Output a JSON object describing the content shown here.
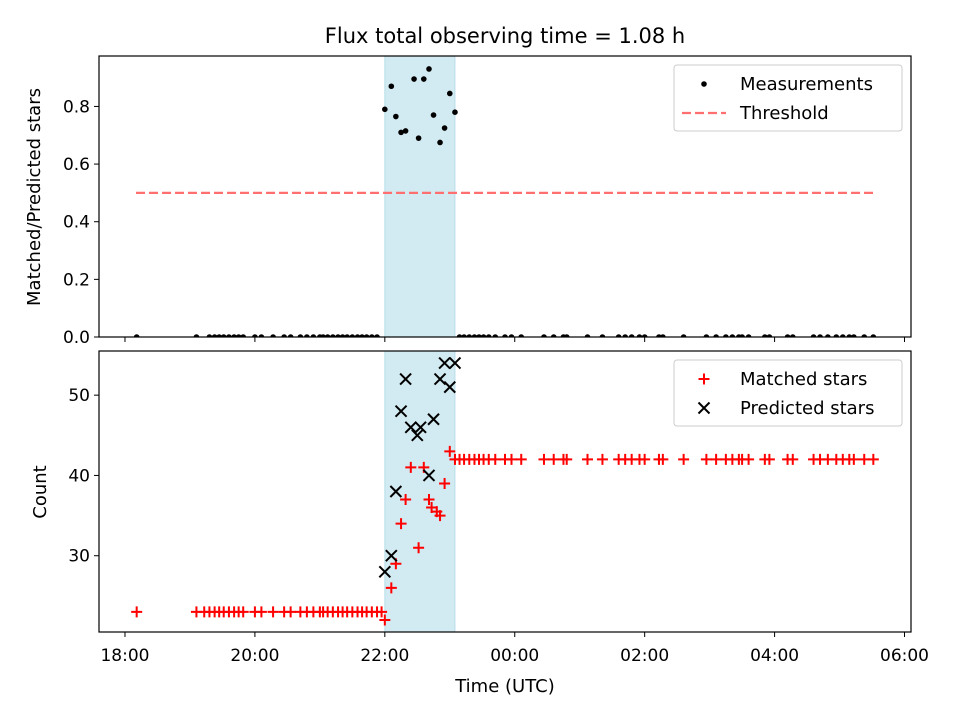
{
  "chart_data": {
    "title": "Flux total observing time = 1.08 h",
    "xlabel": "Time (UTC)",
    "x_unit": "hours after 18:00 UTC",
    "xlim": [
      -0.4,
      12.1
    ],
    "xticks": [
      {
        "x": 0,
        "label": "18:00"
      },
      {
        "x": 2,
        "label": "20:00"
      },
      {
        "x": 4,
        "label": "22:00"
      },
      {
        "x": 6,
        "label": "00:00"
      },
      {
        "x": 8,
        "label": "02:00"
      },
      {
        "x": 10,
        "label": "04:00"
      },
      {
        "x": 12,
        "label": "06:00"
      }
    ],
    "shaded_span": {
      "x0": 4.0,
      "x1": 5.08,
      "color": "#add8e6"
    },
    "panels": [
      {
        "type": "scatter",
        "ylabel": "Matched/Predicted stars",
        "ylim": [
          0,
          0.975
        ],
        "yticks": [
          0.0,
          0.2,
          0.4,
          0.6,
          0.8
        ],
        "ytick_labels": [
          "0.0",
          "0.2",
          "0.4",
          "0.6",
          "0.8"
        ],
        "legend_position": "upper-right",
        "series": [
          {
            "name": "Measurements",
            "marker": "dot",
            "color": "#000000",
            "points": [
              [
                0.18,
                0
              ],
              [
                1.1,
                0
              ],
              [
                1.3,
                0
              ],
              [
                1.38,
                0
              ],
              [
                1.45,
                0
              ],
              [
                1.52,
                0
              ],
              [
                1.6,
                0
              ],
              [
                1.68,
                0
              ],
              [
                1.75,
                0
              ],
              [
                1.82,
                0
              ],
              [
                2.0,
                0
              ],
              [
                2.1,
                0
              ],
              [
                2.28,
                0
              ],
              [
                2.45,
                0
              ],
              [
                2.55,
                0
              ],
              [
                2.7,
                0
              ],
              [
                2.8,
                0
              ],
              [
                2.9,
                0
              ],
              [
                3.0,
                0
              ],
              [
                3.05,
                0
              ],
              [
                3.12,
                0
              ],
              [
                3.2,
                0
              ],
              [
                3.28,
                0
              ],
              [
                3.35,
                0
              ],
              [
                3.42,
                0
              ],
              [
                3.5,
                0
              ],
              [
                3.58,
                0
              ],
              [
                3.65,
                0
              ],
              [
                3.72,
                0
              ],
              [
                3.8,
                0
              ],
              [
                3.88,
                0
              ],
              [
                4.0,
                0.79
              ],
              [
                4.1,
                0.87
              ],
              [
                4.17,
                0.765
              ],
              [
                4.25,
                0.71
              ],
              [
                4.32,
                0.715
              ],
              [
                4.45,
                0.895
              ],
              [
                4.52,
                0.69
              ],
              [
                4.6,
                0.895
              ],
              [
                4.68,
                0.93
              ],
              [
                4.75,
                0.77
              ],
              [
                4.85,
                0.675
              ],
              [
                4.92,
                0.725
              ],
              [
                5.0,
                0.845
              ],
              [
                5.08,
                0.78
              ],
              [
                5.15,
                0
              ],
              [
                5.22,
                0
              ],
              [
                5.3,
                0
              ],
              [
                5.38,
                0
              ],
              [
                5.45,
                0
              ],
              [
                5.52,
                0
              ],
              [
                5.6,
                0
              ],
              [
                5.7,
                0
              ],
              [
                5.85,
                0
              ],
              [
                5.95,
                0
              ],
              [
                6.1,
                0
              ],
              [
                6.45,
                0
              ],
              [
                6.6,
                0
              ],
              [
                6.75,
                0
              ],
              [
                6.8,
                0
              ],
              [
                7.12,
                0
              ],
              [
                7.35,
                0
              ],
              [
                7.6,
                0
              ],
              [
                7.7,
                0
              ],
              [
                7.8,
                0
              ],
              [
                7.92,
                0
              ],
              [
                8.0,
                0
              ],
              [
                8.22,
                0
              ],
              [
                8.28,
                0
              ],
              [
                8.6,
                0
              ],
              [
                8.95,
                0
              ],
              [
                9.1,
                0
              ],
              [
                9.25,
                0
              ],
              [
                9.35,
                0
              ],
              [
                9.45,
                0
              ],
              [
                9.5,
                0
              ],
              [
                9.6,
                0
              ],
              [
                9.85,
                0
              ],
              [
                9.92,
                0
              ],
              [
                10.2,
                0
              ],
              [
                10.28,
                0
              ],
              [
                10.6,
                0
              ],
              [
                10.7,
                0
              ],
              [
                10.82,
                0
              ],
              [
                10.95,
                0
              ],
              [
                11.05,
                0
              ],
              [
                11.15,
                0
              ],
              [
                11.22,
                0
              ],
              [
                11.38,
                0
              ],
              [
                11.52,
                0
              ]
            ]
          },
          {
            "name": "Threshold",
            "marker": "dashed-line",
            "color": "#ff6f6f",
            "points": [
              [
                0.17,
                0.5
              ],
              [
                11.53,
                0.5
              ]
            ]
          }
        ]
      },
      {
        "type": "scatter",
        "ylabel": "Count",
        "ylim": [
          20.5,
          55.5
        ],
        "yticks": [
          30,
          40,
          50
        ],
        "ytick_labels": [
          "30",
          "40",
          "50"
        ],
        "legend_position": "upper-right",
        "series": [
          {
            "name": "Matched stars",
            "marker": "plus",
            "color": "#ff0000",
            "points": [
              [
                0.18,
                23
              ],
              [
                1.1,
                23
              ],
              [
                1.22,
                23
              ],
              [
                1.3,
                23
              ],
              [
                1.38,
                23
              ],
              [
                1.45,
                23
              ],
              [
                1.52,
                23
              ],
              [
                1.6,
                23
              ],
              [
                1.68,
                23
              ],
              [
                1.75,
                23
              ],
              [
                1.82,
                23
              ],
              [
                2.0,
                23
              ],
              [
                2.1,
                23
              ],
              [
                2.28,
                23
              ],
              [
                2.45,
                23
              ],
              [
                2.55,
                23
              ],
              [
                2.7,
                23
              ],
              [
                2.8,
                23
              ],
              [
                2.9,
                23
              ],
              [
                3.0,
                23
              ],
              [
                3.05,
                23
              ],
              [
                3.12,
                23
              ],
              [
                3.2,
                23
              ],
              [
                3.28,
                23
              ],
              [
                3.35,
                23
              ],
              [
                3.42,
                23
              ],
              [
                3.5,
                23
              ],
              [
                3.58,
                23
              ],
              [
                3.65,
                23
              ],
              [
                3.72,
                23
              ],
              [
                3.8,
                23
              ],
              [
                3.88,
                23
              ],
              [
                3.95,
                23
              ],
              [
                4.0,
                22
              ],
              [
                4.1,
                26
              ],
              [
                4.17,
                29
              ],
              [
                4.25,
                34
              ],
              [
                4.32,
                37
              ],
              [
                4.4,
                41
              ],
              [
                4.52,
                31
              ],
              [
                4.6,
                41
              ],
              [
                4.68,
                37
              ],
              [
                4.72,
                36
              ],
              [
                4.8,
                35.5
              ],
              [
                4.85,
                35
              ],
              [
                4.92,
                39
              ],
              [
                5.0,
                43
              ],
              [
                5.08,
                42
              ],
              [
                5.15,
                42
              ],
              [
                5.22,
                42
              ],
              [
                5.3,
                42
              ],
              [
                5.38,
                42
              ],
              [
                5.45,
                42
              ],
              [
                5.52,
                42
              ],
              [
                5.6,
                42
              ],
              [
                5.7,
                42
              ],
              [
                5.85,
                42
              ],
              [
                5.95,
                42
              ],
              [
                6.1,
                42
              ],
              [
                6.45,
                42
              ],
              [
                6.6,
                42
              ],
              [
                6.75,
                42
              ],
              [
                6.8,
                42
              ],
              [
                7.12,
                42
              ],
              [
                7.35,
                42
              ],
              [
                7.6,
                42
              ],
              [
                7.7,
                42
              ],
              [
                7.8,
                42
              ],
              [
                7.92,
                42
              ],
              [
                8.0,
                42
              ],
              [
                8.22,
                42
              ],
              [
                8.28,
                42
              ],
              [
                8.6,
                42
              ],
              [
                8.95,
                42
              ],
              [
                9.1,
                42
              ],
              [
                9.25,
                42
              ],
              [
                9.35,
                42
              ],
              [
                9.45,
                42
              ],
              [
                9.5,
                42
              ],
              [
                9.6,
                42
              ],
              [
                9.85,
                42
              ],
              [
                9.92,
                42
              ],
              [
                10.2,
                42
              ],
              [
                10.28,
                42
              ],
              [
                10.6,
                42
              ],
              [
                10.7,
                42
              ],
              [
                10.82,
                42
              ],
              [
                10.95,
                42
              ],
              [
                11.05,
                42
              ],
              [
                11.15,
                42
              ],
              [
                11.22,
                42
              ],
              [
                11.38,
                42
              ],
              [
                11.52,
                42
              ]
            ]
          },
          {
            "name": "Predicted stars",
            "marker": "x",
            "color": "#000000",
            "points": [
              [
                4.0,
                28
              ],
              [
                4.1,
                30
              ],
              [
                4.17,
                38
              ],
              [
                4.25,
                48
              ],
              [
                4.32,
                52
              ],
              [
                4.4,
                46
              ],
              [
                4.5,
                45
              ],
              [
                4.55,
                46
              ],
              [
                4.68,
                40
              ],
              [
                4.75,
                47
              ],
              [
                4.85,
                52
              ],
              [
                4.92,
                54
              ],
              [
                5.0,
                51
              ],
              [
                5.08,
                54
              ]
            ]
          }
        ]
      }
    ]
  }
}
